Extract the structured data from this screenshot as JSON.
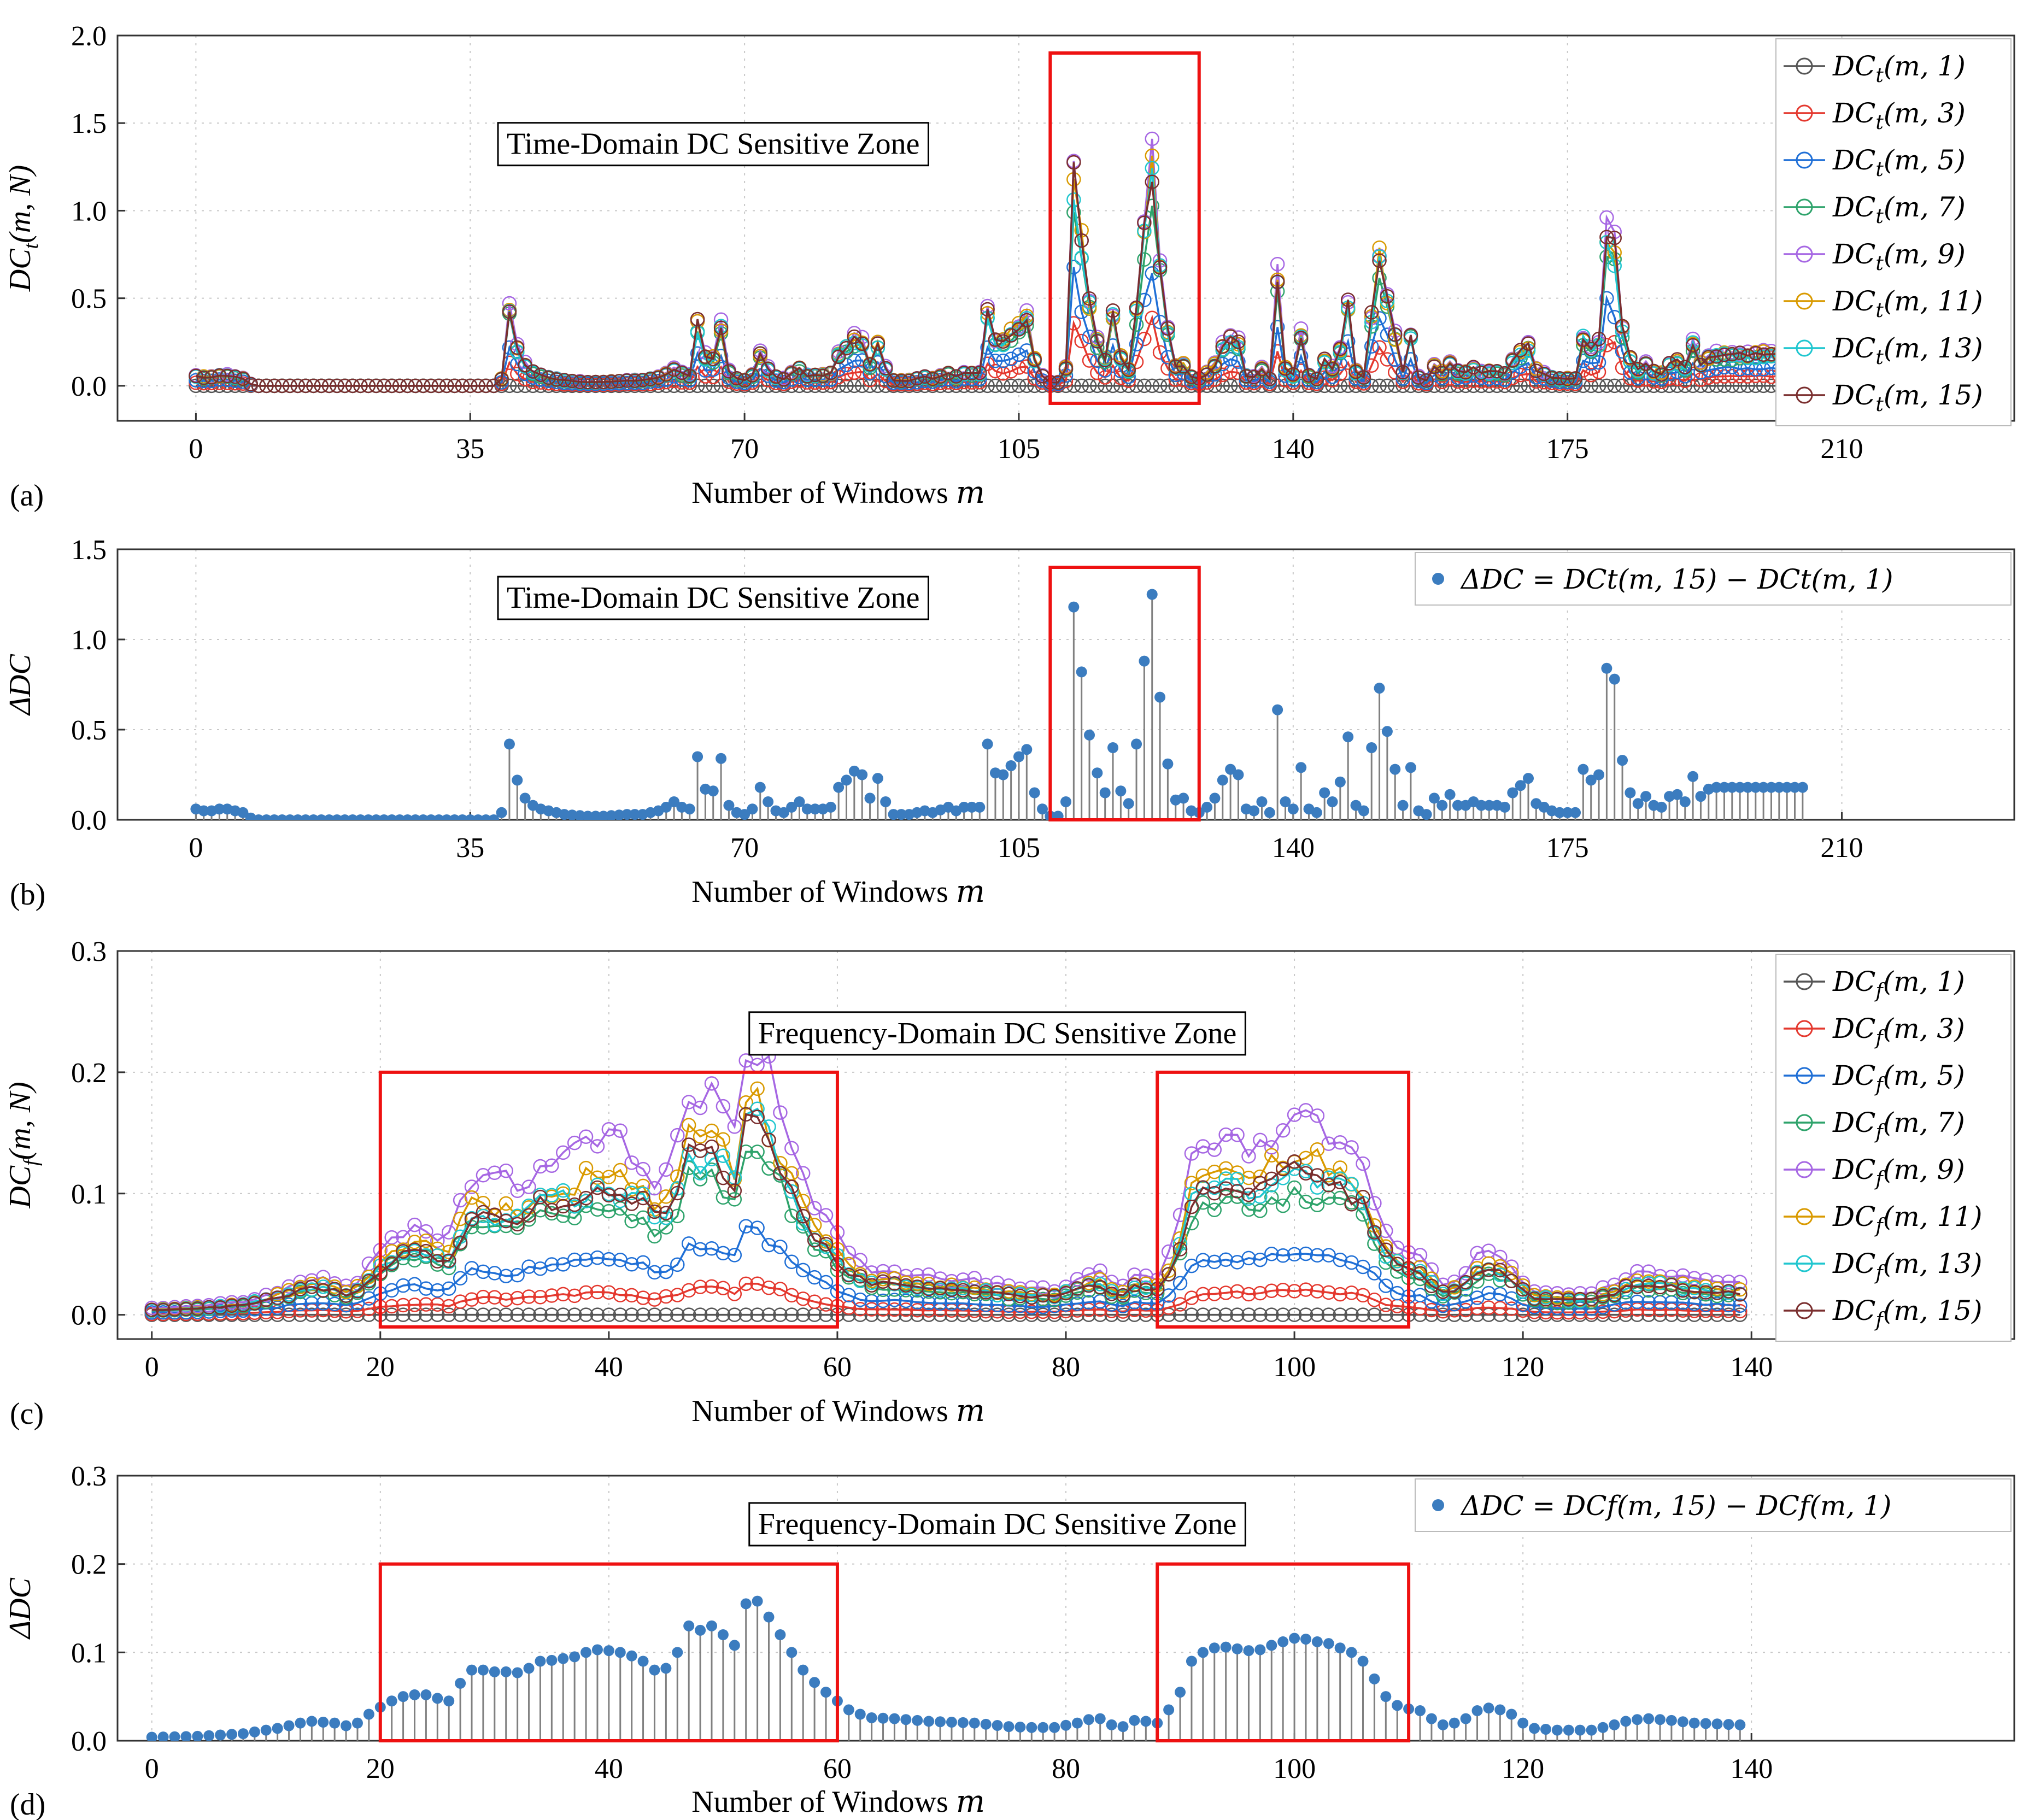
{
  "figure": {
    "panel_tags": [
      "(a)",
      "(b)",
      "(c)",
      "(d)"
    ]
  },
  "colors": [
    "#555555",
    "#e4382e",
    "#1f6fd6",
    "#2ea36b",
    "#a667e3",
    "#d99a00",
    "#1fc6cf",
    "#7a2e2e"
  ],
  "stem_color": "#808080",
  "marker_color": "#3b7cbf",
  "zone_color": "#ee1111",
  "chart_data": [
    {
      "id": "a",
      "type": "line",
      "xlabel": "Number of Windows",
      "xlabel_var": "m",
      "ylabel": "DC_t(m, N)",
      "ylabel_parts": [
        "DC",
        "t",
        "(m, N)"
      ],
      "xlim": [
        -10,
        232
      ],
      "ylim": [
        -0.2,
        2.0
      ],
      "xticks": [
        0,
        35,
        70,
        105,
        140,
        175,
        210
      ],
      "yticks": [
        "0.0",
        "0.5",
        "1.0",
        "1.5",
        "2.0"
      ],
      "ytick_values": [
        0,
        0.5,
        1.0,
        1.5,
        2.0
      ],
      "zone_label": "Time-Domain DC Sensitive Zone",
      "zone_label_at": [
        66,
        1.38
      ],
      "zones": [
        [
          109,
          128,
          -0.1,
          1.9
        ]
      ],
      "n_points": 206,
      "legend_position": "top-right",
      "legend": [
        "DC_t(m, 1)",
        "DC_t(m, 3)",
        "DC_t(m, 5)",
        "DC_t(m, 7)",
        "DC_t(m, 9)",
        "DC_t(m, 11)",
        "DC_t(m, 13)",
        "DC_t(m, 15)"
      ],
      "legend_items": [
        {
          "base": "DC",
          "sub": "t",
          "args": "(m, 1)"
        },
        {
          "base": "DC",
          "sub": "t",
          "args": "(m, 3)"
        },
        {
          "base": "DC",
          "sub": "t",
          "args": "(m, 5)"
        },
        {
          "base": "DC",
          "sub": "t",
          "args": "(m, 7)"
        },
        {
          "base": "DC",
          "sub": "t",
          "args": "(m, 9)"
        },
        {
          "base": "DC",
          "sub": "t",
          "args": "(m, 11)"
        },
        {
          "base": "DC",
          "sub": "t",
          "args": "(m, 13)"
        },
        {
          "base": "DC",
          "sub": "t",
          "args": "(m, 15)"
        }
      ],
      "series_scale": [
        0,
        0.3,
        0.55,
        0.9,
        1.05,
        1.0,
        0.95,
        1.0
      ],
      "baseline": [
        [
          0,
          0.06
        ],
        [
          1,
          0.05
        ],
        [
          2,
          0.05
        ],
        [
          3,
          0.06
        ],
        [
          4,
          0.06
        ],
        [
          5,
          0.05
        ],
        [
          6,
          0.04
        ],
        [
          7,
          0.01
        ],
        [
          8,
          0
        ],
        [
          38,
          0
        ],
        [
          39,
          0.04
        ],
        [
          40,
          0.42
        ],
        [
          41,
          0.22
        ],
        [
          42,
          0.12
        ],
        [
          43,
          0.08
        ],
        [
          44,
          0.06
        ],
        [
          45,
          0.05
        ],
        [
          47,
          0.03
        ],
        [
          50,
          0.02
        ],
        [
          52,
          0.02
        ],
        [
          55,
          0.03
        ],
        [
          57,
          0.03
        ],
        [
          59,
          0.05
        ],
        [
          60,
          0.07
        ],
        [
          61,
          0.1
        ],
        [
          62,
          0.07
        ],
        [
          63,
          0.06
        ],
        [
          64,
          0.35
        ],
        [
          65,
          0.17
        ],
        [
          66,
          0.16
        ],
        [
          67,
          0.34
        ],
        [
          68,
          0.08
        ],
        [
          69,
          0.04
        ],
        [
          70,
          0.03
        ],
        [
          71,
          0.06
        ],
        [
          72,
          0.18
        ],
        [
          73,
          0.1
        ],
        [
          74,
          0.05
        ],
        [
          75,
          0.04
        ],
        [
          76,
          0.07
        ],
        [
          77,
          0.1
        ],
        [
          78,
          0.06
        ],
        [
          80,
          0.06
        ],
        [
          81,
          0.07
        ],
        [
          82,
          0.18
        ],
        [
          83,
          0.22
        ],
        [
          84,
          0.27
        ],
        [
          85,
          0.25
        ],
        [
          86,
          0.12
        ],
        [
          87,
          0.23
        ],
        [
          88,
          0.1
        ],
        [
          89,
          0.03
        ],
        [
          91,
          0.03
        ],
        [
          93,
          0.05
        ],
        [
          94,
          0.04
        ],
        [
          96,
          0.07
        ],
        [
          97,
          0.05
        ],
        [
          98,
          0.07
        ],
        [
          99,
          0.07
        ],
        [
          100,
          0.07
        ],
        [
          101,
          0.42
        ],
        [
          102,
          0.26
        ],
        [
          103,
          0.25
        ],
        [
          104,
          0.3
        ],
        [
          105,
          0.35
        ],
        [
          106,
          0.39
        ],
        [
          107,
          0.15
        ],
        [
          108,
          0.06
        ],
        [
          109,
          0.02
        ],
        [
          110,
          0.02
        ],
        [
          111,
          0.1
        ],
        [
          112,
          1.18
        ],
        [
          113,
          0.82
        ],
        [
          114,
          0.47
        ],
        [
          115,
          0.26
        ],
        [
          116,
          0.15
        ],
        [
          117,
          0.4
        ],
        [
          118,
          0.16
        ],
        [
          119,
          0.09
        ],
        [
          120,
          0.42
        ],
        [
          121,
          0.88
        ],
        [
          122,
          1.25
        ],
        [
          123,
          0.68
        ],
        [
          124,
          0.31
        ],
        [
          125,
          0.11
        ],
        [
          126,
          0.12
        ],
        [
          127,
          0.05
        ],
        [
          128,
          0.04
        ],
        [
          129,
          0.07
        ],
        [
          130,
          0.12
        ],
        [
          131,
          0.22
        ],
        [
          132,
          0.28
        ],
        [
          133,
          0.25
        ],
        [
          134,
          0.06
        ],
        [
          135,
          0.05
        ],
        [
          136,
          0.1
        ],
        [
          137,
          0.04
        ],
        [
          138,
          0.61
        ],
        [
          139,
          0.1
        ],
        [
          140,
          0.06
        ],
        [
          141,
          0.29
        ],
        [
          142,
          0.06
        ],
        [
          143,
          0.04
        ],
        [
          144,
          0.15
        ],
        [
          145,
          0.1
        ],
        [
          146,
          0.21
        ],
        [
          147,
          0.46
        ],
        [
          148,
          0.08
        ],
        [
          149,
          0.05
        ],
        [
          150,
          0.4
        ],
        [
          151,
          0.73
        ],
        [
          152,
          0.49
        ],
        [
          153,
          0.28
        ],
        [
          154,
          0.08
        ],
        [
          155,
          0.29
        ],
        [
          156,
          0.05
        ],
        [
          157,
          0.03
        ],
        [
          158,
          0.12
        ],
        [
          159,
          0.08
        ],
        [
          160,
          0.14
        ],
        [
          161,
          0.08
        ],
        [
          162,
          0.08
        ],
        [
          163,
          0.1
        ],
        [
          164,
          0.08
        ],
        [
          165,
          0.08
        ],
        [
          166,
          0.08
        ],
        [
          167,
          0.07
        ],
        [
          168,
          0.15
        ],
        [
          169,
          0.19
        ],
        [
          170,
          0.23
        ],
        [
          171,
          0.09
        ],
        [
          172,
          0.07
        ],
        [
          173,
          0.05
        ],
        [
          174,
          0.04
        ],
        [
          175,
          0.04
        ],
        [
          176,
          0.04
        ],
        [
          177,
          0.28
        ],
        [
          178,
          0.22
        ],
        [
          179,
          0.25
        ],
        [
          180,
          0.84
        ],
        [
          181,
          0.78
        ],
        [
          182,
          0.33
        ],
        [
          183,
          0.15
        ],
        [
          184,
          0.09
        ],
        [
          185,
          0.13
        ],
        [
          186,
          0.08
        ],
        [
          187,
          0.07
        ],
        [
          188,
          0.13
        ],
        [
          189,
          0.14
        ],
        [
          190,
          0.1
        ],
        [
          191,
          0.24
        ],
        [
          192,
          0.13
        ],
        [
          193,
          0.17
        ],
        [
          194,
          0.18
        ],
        [
          205,
          0.18
        ]
      ]
    },
    {
      "id": "b",
      "type": "stem",
      "xlabel": "Number of Windows",
      "xlabel_var": "m",
      "ylabel": "ΔDC",
      "xlim": [
        -10,
        232
      ],
      "ylim": [
        0,
        1.5
      ],
      "xticks": [
        0,
        35,
        70,
        105,
        140,
        175,
        210
      ],
      "yticks": [
        "0.0",
        "0.5",
        "1.0",
        "1.5"
      ],
      "ytick_values": [
        0,
        0.5,
        1.0,
        1.5
      ],
      "zone_label": "Time-Domain DC Sensitive Zone",
      "zone_label_at": [
        66,
        1.23
      ],
      "zones": [
        [
          109,
          128,
          0,
          1.4
        ]
      ],
      "n_points": 206,
      "legend_position": "top-right",
      "legend": [
        "ΔDC = DC_t(m,15) − DC_t(m,1)"
      ],
      "legend_text": "ΔDC = DCt(m, 15) − DCt(m, 1)",
      "values_from": "a"
    },
    {
      "id": "c",
      "type": "line",
      "xlabel": "Number of Windows",
      "xlabel_var": "m",
      "ylabel": "DC_f(m, N)",
      "ylabel_parts": [
        "DC",
        "f",
        "(m, N)"
      ],
      "xlim": [
        -3,
        163
      ],
      "ylim": [
        -0.02,
        0.3
      ],
      "xticks": [
        0,
        20,
        40,
        60,
        80,
        100,
        120,
        140
      ],
      "yticks": [
        "0.0",
        "0.1",
        "0.2",
        "0.3"
      ],
      "ytick_values": [
        0,
        0.1,
        0.2,
        0.3
      ],
      "zone_label": "Frequency-Domain DC Sensitive Zone",
      "zone_label_at": [
        74,
        0.232
      ],
      "zones": [
        [
          20,
          60,
          -0.01,
          0.2
        ],
        [
          88,
          110,
          -0.01,
          0.2
        ]
      ],
      "n_points": 140,
      "legend_position": "top-right",
      "legend": [
        "DC_f(m, 1)",
        "DC_f(m, 3)",
        "DC_f(m, 5)",
        "DC_f(m, 7)",
        "DC_f(m, 9)",
        "DC_f(m, 11)",
        "DC_f(m, 13)",
        "DC_f(m, 15)"
      ],
      "legend_items": [
        {
          "base": "DC",
          "sub": "f",
          "args": "(m, 1)"
        },
        {
          "base": "DC",
          "sub": "f",
          "args": "(m, 3)"
        },
        {
          "base": "DC",
          "sub": "f",
          "args": "(m, 5)"
        },
        {
          "base": "DC",
          "sub": "f",
          "args": "(m, 7)"
        },
        {
          "base": "DC",
          "sub": "f",
          "args": "(m, 9)"
        },
        {
          "base": "DC",
          "sub": "f",
          "args": "(m, 11)"
        },
        {
          "base": "DC",
          "sub": "f",
          "args": "(m, 13)"
        },
        {
          "base": "DC",
          "sub": "f",
          "args": "(m, 15)"
        }
      ],
      "series_scale": [
        0,
        0.17,
        0.45,
        0.88,
        1.4,
        1.12,
        1.02,
        1.0
      ],
      "baseline": [
        [
          0,
          0.004
        ],
        [
          4,
          0.005
        ],
        [
          8,
          0.008
        ],
        [
          11,
          0.014
        ],
        [
          13,
          0.02
        ],
        [
          14,
          0.022
        ],
        [
          16,
          0.02
        ],
        [
          17,
          0.017
        ],
        [
          18,
          0.02
        ],
        [
          19,
          0.03
        ],
        [
          20,
          0.038
        ],
        [
          21,
          0.045
        ],
        [
          22,
          0.05
        ],
        [
          23,
          0.052
        ],
        [
          24,
          0.052
        ],
        [
          25,
          0.048
        ],
        [
          26,
          0.045
        ],
        [
          27,
          0.065
        ],
        [
          28,
          0.08
        ],
        [
          29,
          0.08
        ],
        [
          30,
          0.078
        ],
        [
          31,
          0.078
        ],
        [
          32,
          0.077
        ],
        [
          33,
          0.082
        ],
        [
          34,
          0.09
        ],
        [
          35,
          0.091
        ],
        [
          36,
          0.093
        ],
        [
          37,
          0.095
        ],
        [
          38,
          0.1
        ],
        [
          39,
          0.103
        ],
        [
          40,
          0.102
        ],
        [
          41,
          0.1
        ],
        [
          42,
          0.096
        ],
        [
          43,
          0.09
        ],
        [
          44,
          0.08
        ],
        [
          45,
          0.082
        ],
        [
          46,
          0.1
        ],
        [
          47,
          0.13
        ],
        [
          48,
          0.125
        ],
        [
          49,
          0.13
        ],
        [
          50,
          0.12
        ],
        [
          51,
          0.108
        ],
        [
          52,
          0.155
        ],
        [
          53,
          0.158
        ],
        [
          54,
          0.14
        ],
        [
          55,
          0.12
        ],
        [
          56,
          0.1
        ],
        [
          57,
          0.08
        ],
        [
          58,
          0.066
        ],
        [
          59,
          0.055
        ],
        [
          60,
          0.045
        ],
        [
          61,
          0.035
        ],
        [
          62,
          0.03
        ],
        [
          63,
          0.026
        ],
        [
          65,
          0.025
        ],
        [
          68,
          0.022
        ],
        [
          72,
          0.02
        ],
        [
          75,
          0.016
        ],
        [
          77,
          0.015
        ],
        [
          79,
          0.015
        ],
        [
          81,
          0.02
        ],
        [
          82,
          0.024
        ],
        [
          83,
          0.025
        ],
        [
          84,
          0.018
        ],
        [
          85,
          0.016
        ],
        [
          86,
          0.023
        ],
        [
          87,
          0.022
        ],
        [
          88,
          0.02
        ],
        [
          89,
          0.035
        ],
        [
          90,
          0.055
        ],
        [
          91,
          0.09
        ],
        [
          92,
          0.1
        ],
        [
          93,
          0.105
        ],
        [
          94,
          0.106
        ],
        [
          95,
          0.104
        ],
        [
          96,
          0.102
        ],
        [
          97,
          0.103
        ],
        [
          98,
          0.108
        ],
        [
          99,
          0.112
        ],
        [
          100,
          0.116
        ],
        [
          101,
          0.115
        ],
        [
          102,
          0.112
        ],
        [
          103,
          0.11
        ],
        [
          104,
          0.105
        ],
        [
          105,
          0.1
        ],
        [
          106,
          0.09
        ],
        [
          107,
          0.07
        ],
        [
          108,
          0.05
        ],
        [
          109,
          0.04
        ],
        [
          110,
          0.036
        ],
        [
          111,
          0.034
        ],
        [
          112,
          0.025
        ],
        [
          113,
          0.018
        ],
        [
          114,
          0.02
        ],
        [
          115,
          0.025
        ],
        [
          116,
          0.034
        ],
        [
          117,
          0.037
        ],
        [
          118,
          0.035
        ],
        [
          119,
          0.03
        ],
        [
          120,
          0.02
        ],
        [
          121,
          0.014
        ],
        [
          123,
          0.012
        ],
        [
          126,
          0.012
        ],
        [
          127,
          0.015
        ],
        [
          128,
          0.018
        ],
        [
          129,
          0.022
        ],
        [
          130,
          0.024
        ],
        [
          131,
          0.025
        ],
        [
          133,
          0.023
        ],
        [
          135,
          0.02
        ],
        [
          139,
          0.018
        ]
      ]
    },
    {
      "id": "d",
      "type": "stem",
      "xlabel": "Number of Windows",
      "xlabel_var": "m",
      "ylabel": "ΔDC",
      "xlim": [
        -3,
        163
      ],
      "ylim": [
        0,
        0.3
      ],
      "xticks": [
        0,
        20,
        40,
        60,
        80,
        100,
        120,
        140
      ],
      "yticks": [
        "0.0",
        "0.1",
        "0.2",
        "0.3"
      ],
      "ytick_values": [
        0,
        0.1,
        0.2,
        0.3
      ],
      "zone_label": "Frequency-Domain DC Sensitive Zone",
      "zone_label_at": [
        74,
        0.245
      ],
      "zones": [
        [
          20,
          60,
          0,
          0.2
        ],
        [
          88,
          110,
          0,
          0.2
        ]
      ],
      "n_points": 140,
      "legend_position": "top-right",
      "legend": [
        "ΔDC = DC_f(m,15) − DC_f(m,1)"
      ],
      "legend_text": "ΔDC = DCf(m, 15) − DCf(m, 1)",
      "values_from": "c"
    }
  ]
}
